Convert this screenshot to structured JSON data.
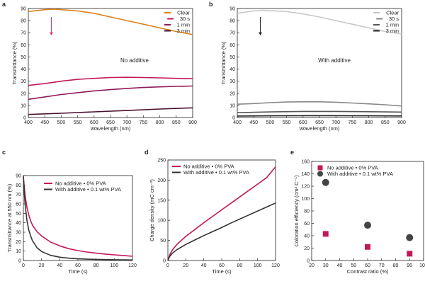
{
  "chart_data": [
    {
      "panel": "a",
      "type": "line",
      "xlabel": "Wavelength (nm)",
      "ylabel": "Transmittance (%)",
      "xlim": [
        400,
        900
      ],
      "ylim": [
        0,
        90
      ],
      "xticks": [
        400,
        450,
        500,
        550,
        600,
        650,
        700,
        750,
        800,
        850,
        900
      ],
      "yticks": [
        0,
        10,
        20,
        30,
        40,
        50,
        60,
        70,
        80,
        90
      ],
      "legend_position": "top-right",
      "annotation": "No additive",
      "arrow": {
        "x": 470,
        "y_from": 83,
        "y_to": 68,
        "color": "#d6336c"
      },
      "series": [
        {
          "name": "Clear",
          "color": "#d9821e",
          "x": [
            400,
            450,
            480,
            550,
            600,
            650,
            700,
            750,
            800,
            850,
            900
          ],
          "y": [
            87.5,
            89,
            89.5,
            88,
            86,
            83,
            80,
            77,
            74,
            71,
            68.5
          ]
        },
        {
          "name": "30 s",
          "color": "#c2185b",
          "x": [
            400,
            450,
            500,
            550,
            600,
            650,
            700,
            750,
            800,
            850,
            900
          ],
          "y": [
            26.5,
            28,
            30,
            31.5,
            32.3,
            33,
            33.2,
            33,
            32.7,
            32.3,
            32
          ]
        },
        {
          "name": "1 min",
          "color": "#8e1b5a",
          "x": [
            400,
            450,
            500,
            550,
            600,
            650,
            700,
            750,
            800,
            850,
            900
          ],
          "y": [
            15,
            17,
            19,
            20.5,
            22,
            23,
            24,
            24.8,
            25.3,
            25.7,
            26
          ]
        },
        {
          "name": "3 min",
          "color": "#4a1030",
          "x": [
            400,
            500,
            600,
            700,
            800,
            900
          ],
          "y": [
            2.5,
            3.5,
            4.7,
            5.8,
            7,
            8
          ]
        }
      ]
    },
    {
      "panel": "b",
      "type": "line",
      "xlabel": "Wavelength (nm)",
      "ylabel": "Transmittance (%)",
      "xlim": [
        400,
        900
      ],
      "ylim": [
        0,
        90
      ],
      "xticks": [
        400,
        450,
        500,
        550,
        600,
        650,
        700,
        750,
        800,
        850,
        900
      ],
      "yticks": [
        0,
        10,
        20,
        30,
        40,
        50,
        60,
        70,
        80,
        90
      ],
      "legend_position": "top-right",
      "annotation": "With additive",
      "arrow": {
        "x": 470,
        "y_from": 83,
        "y_to": 68,
        "color": "#222222"
      },
      "series": [
        {
          "name": "Clear",
          "color": "#c8c8c8",
          "x": [
            400,
            450,
            480,
            550,
            600,
            650,
            700,
            750,
            800,
            850,
            900
          ],
          "y": [
            86,
            88,
            88.5,
            87.5,
            85.5,
            83,
            80,
            77,
            74,
            71,
            69
          ]
        },
        {
          "name": "30 s",
          "color": "#888888",
          "x": [
            400,
            450,
            500,
            550,
            600,
            650,
            700,
            750,
            800,
            850,
            900
          ],
          "y": [
            11,
            11.5,
            12.3,
            12.8,
            13,
            13,
            12.6,
            12,
            11.3,
            10.5,
            9.5
          ]
        },
        {
          "name": "1 min",
          "color": "#555555",
          "x": [
            400,
            500,
            600,
            700,
            800,
            900
          ],
          "y": [
            4,
            4.6,
            5,
            5,
            4.8,
            4.5
          ]
        },
        {
          "name": "3 min",
          "color": "#222222",
          "x": [
            400,
            500,
            600,
            700,
            800,
            900
          ],
          "y": [
            1.2,
            1.4,
            1.5,
            1.5,
            1.4,
            1.3
          ]
        }
      ]
    },
    {
      "panel": "c",
      "type": "line",
      "xlabel": "Time (s)",
      "ylabel": "Transmittance at 550 nm (%)",
      "xlim": [
        0,
        120
      ],
      "ylim": [
        0,
        90
      ],
      "xticks": [
        0,
        20,
        40,
        60,
        80,
        100,
        120
      ],
      "yticks": [
        0,
        10,
        20,
        30,
        40,
        50,
        60,
        70,
        80,
        90
      ],
      "legend_position": "top-right",
      "series": [
        {
          "name": "No additive • 0% PVA",
          "color": "#c2185b",
          "x": [
            0,
            1,
            2,
            4,
            6,
            8,
            10,
            15,
            20,
            30,
            40,
            50,
            60,
            70,
            80,
            90,
            100,
            110,
            120
          ],
          "y": [
            88,
            78,
            68,
            56,
            48,
            42,
            37.5,
            30.5,
            26,
            19.5,
            15.5,
            12.5,
            10.5,
            9,
            7.8,
            6.8,
            6,
            5.3,
            4.5
          ]
        },
        {
          "name": "With additive • 0.1 wt% PVA",
          "color": "#333333",
          "x": [
            0,
            1,
            2,
            4,
            6,
            8,
            10,
            15,
            20,
            30,
            40,
            50,
            60,
            70,
            80,
            90,
            100,
            110,
            120
          ],
          "y": [
            90,
            72,
            58,
            42,
            32,
            26,
            21,
            13.5,
            9.5,
            5.5,
            3.5,
            2.5,
            1.8,
            1.4,
            1.2,
            1,
            0.8,
            0.7,
            0.6
          ]
        }
      ]
    },
    {
      "panel": "d",
      "type": "line",
      "xlabel": "Time (s)",
      "ylabel": "Charge density (mC cm⁻²)",
      "xlim": [
        0,
        120
      ],
      "ylim": [
        0,
        250
      ],
      "xticks": [
        0,
        20,
        40,
        60,
        80,
        100,
        120
      ],
      "yticks": [
        0,
        50,
        100,
        150,
        200,
        250
      ],
      "legend_position": "top-left",
      "series": [
        {
          "name": "No additive • 0% PVA",
          "color": "#c2185b",
          "x": [
            0,
            2,
            5,
            10,
            20,
            30,
            40,
            50,
            60,
            70,
            80,
            90,
            100,
            110,
            120
          ],
          "y": [
            0,
            14,
            26,
            40,
            60,
            77,
            94,
            110,
            126,
            142,
            158,
            174,
            190,
            206,
            233
          ]
        },
        {
          "name": "With additive • 0.1 wt% PVA",
          "color": "#333333",
          "x": [
            0,
            2,
            5,
            10,
            20,
            30,
            40,
            50,
            60,
            70,
            80,
            90,
            100,
            110,
            120
          ],
          "y": [
            0,
            10,
            18,
            27,
            40,
            51,
            62,
            72,
            82,
            93,
            103,
            113,
            123,
            133,
            143
          ]
        }
      ]
    },
    {
      "panel": "e",
      "type": "scatter",
      "xlabel": "Contrast ratio (%)",
      "ylabel": "Coloration efficiency (cm² C⁻¹)",
      "xlim": [
        20,
        100
      ],
      "ylim": [
        0,
        160
      ],
      "xticks": [
        20,
        30,
        40,
        50,
        60,
        70,
        80,
        90,
        100
      ],
      "yticks": [
        0,
        20,
        40,
        60,
        80,
        100,
        120,
        140,
        160
      ],
      "legend_position": "top-left",
      "series": [
        {
          "name": "No additive • 0% PVA",
          "color": "#c2185b",
          "marker": "square",
          "x": [
            30,
            60,
            90
          ],
          "y": [
            43,
            22,
            11
          ]
        },
        {
          "name": "With additive • 0.1 wt% PVA",
          "color": "#444444",
          "marker": "circle",
          "x": [
            30,
            60,
            90
          ],
          "y": [
            126,
            57,
            37
          ]
        }
      ]
    }
  ]
}
